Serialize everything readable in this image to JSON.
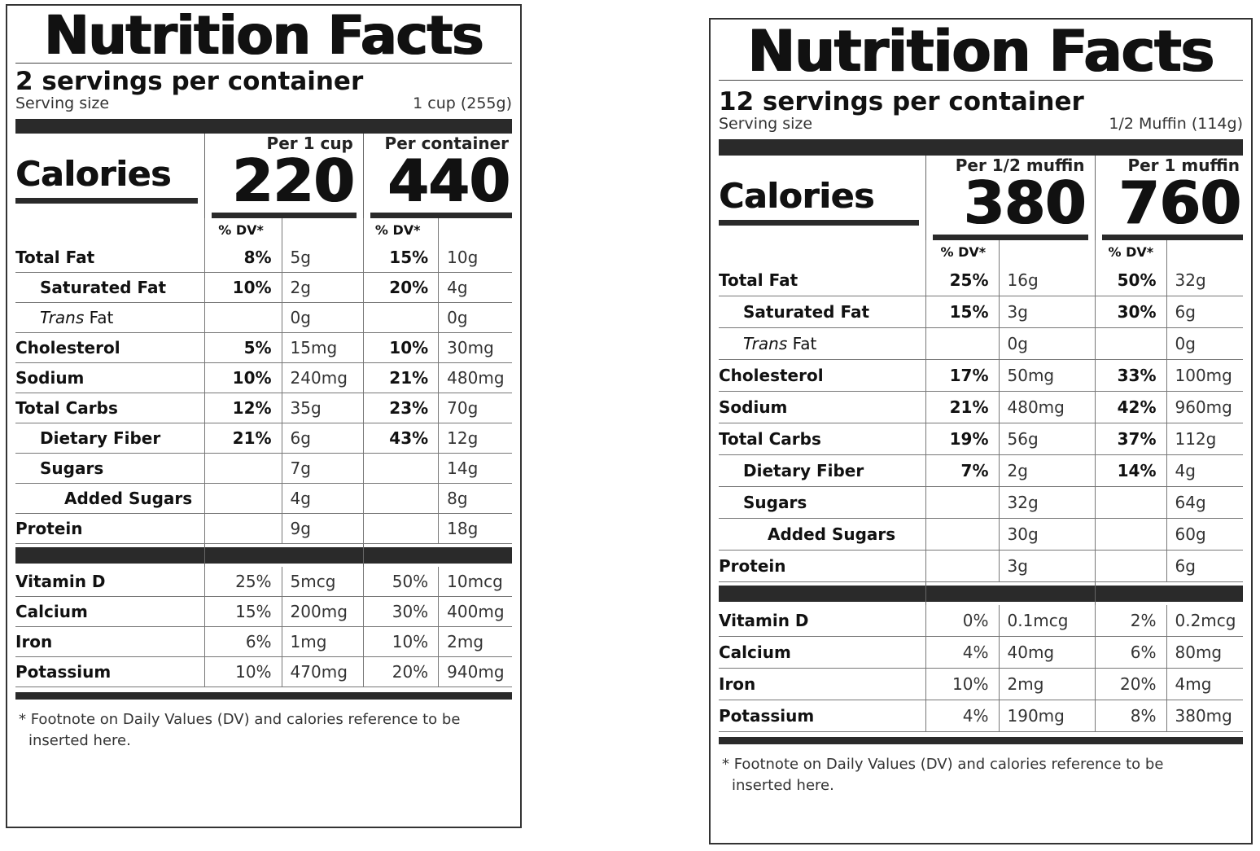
{
  "labels": [
    {
      "title": "Nutrition Facts",
      "servings": "2 servings per container",
      "serving_size_label": "Serving size",
      "serving_size_value": "1 cup (255g)",
      "calories_label": "Calories",
      "columns": [
        {
          "header": "Per 1 cup",
          "calories": "220"
        },
        {
          "header": "Per container",
          "calories": "440"
        }
      ],
      "dv_header": "% DV*",
      "nutrients": [
        {
          "name": "Total Fat",
          "c1_pct": "8%",
          "c1_amt": "5g",
          "c2_pct": "15%",
          "c2_amt": "10g"
        },
        {
          "name": "Saturated Fat",
          "c1_pct": "10%",
          "c1_amt": "2g",
          "c2_pct": "20%",
          "c2_amt": "4g"
        },
        {
          "name_italic": "Trans",
          "name_rest": " Fat",
          "c1_pct": "",
          "c1_amt": "0g",
          "c2_pct": "",
          "c2_amt": "0g"
        },
        {
          "name": "Cholesterol",
          "c1_pct": "5%",
          "c1_amt": "15mg",
          "c2_pct": "10%",
          "c2_amt": "30mg"
        },
        {
          "name": "Sodium",
          "c1_pct": "10%",
          "c1_amt": "240mg",
          "c2_pct": "21%",
          "c2_amt": "480mg"
        },
        {
          "name": "Total Carbs",
          "c1_pct": "12%",
          "c1_amt": "35g",
          "c2_pct": "23%",
          "c2_amt": "70g"
        },
        {
          "name": "Dietary Fiber",
          "c1_pct": "21%",
          "c1_amt": "6g",
          "c2_pct": "43%",
          "c2_amt": "12g"
        },
        {
          "name": "Sugars",
          "c1_pct": "",
          "c1_amt": "7g",
          "c2_pct": "",
          "c2_amt": "14g"
        },
        {
          "name": "Added Sugars",
          "c1_pct": "",
          "c1_amt": "4g",
          "c2_pct": "",
          "c2_amt": "8g"
        },
        {
          "name": "Protein",
          "c1_pct": "",
          "c1_amt": "9g",
          "c2_pct": "",
          "c2_amt": "18g"
        }
      ],
      "vitamins": [
        {
          "name": "Vitamin D",
          "c1_pct": "25%",
          "c1_amt": "5mcg",
          "c2_pct": "50%",
          "c2_amt": "10mcg"
        },
        {
          "name": "Calcium",
          "c1_pct": "15%",
          "c1_amt": "200mg",
          "c2_pct": "30%",
          "c2_amt": "400mg"
        },
        {
          "name": "Iron",
          "c1_pct": "6%",
          "c1_amt": "1mg",
          "c2_pct": "10%",
          "c2_amt": "2mg"
        },
        {
          "name": "Potassium",
          "c1_pct": "10%",
          "c1_amt": "470mg",
          "c2_pct": "20%",
          "c2_amt": "940mg"
        }
      ],
      "footnote_line1": "* Footnote on Daily Values (DV) and calories reference to be",
      "footnote_line2": "inserted here."
    },
    {
      "title": "Nutrition Facts",
      "servings": "12 servings per container",
      "serving_size_label": "Serving size",
      "serving_size_value": "1/2 Muffin (114g)",
      "calories_label": "Calories",
      "columns": [
        {
          "header": "Per 1/2 muffin",
          "calories": "380"
        },
        {
          "header": "Per 1 muffin",
          "calories": "760"
        }
      ],
      "dv_header": "% DV*",
      "nutrients": [
        {
          "name": "Total Fat",
          "c1_pct": "25%",
          "c1_amt": "16g",
          "c2_pct": "50%",
          "c2_amt": "32g"
        },
        {
          "name": "Saturated Fat",
          "c1_pct": "15%",
          "c1_amt": "3g",
          "c2_pct": "30%",
          "c2_amt": "6g"
        },
        {
          "name_italic": "Trans",
          "name_rest": " Fat",
          "c1_pct": "",
          "c1_amt": "0g",
          "c2_pct": "",
          "c2_amt": "0g"
        },
        {
          "name": "Cholesterol",
          "c1_pct": "17%",
          "c1_amt": "50mg",
          "c2_pct": "33%",
          "c2_amt": "100mg"
        },
        {
          "name": "Sodium",
          "c1_pct": "21%",
          "c1_amt": "480mg",
          "c2_pct": "42%",
          "c2_amt": "960mg"
        },
        {
          "name": "Total Carbs",
          "c1_pct": "19%",
          "c1_amt": "56g",
          "c2_pct": "37%",
          "c2_amt": "112g"
        },
        {
          "name": "Dietary Fiber",
          "c1_pct": "7%",
          "c1_amt": "2g",
          "c2_pct": "14%",
          "c2_amt": "4g"
        },
        {
          "name": "Sugars",
          "c1_pct": "",
          "c1_amt": "32g",
          "c2_pct": "",
          "c2_amt": "64g"
        },
        {
          "name": "Added Sugars",
          "c1_pct": "",
          "c1_amt": "30g",
          "c2_pct": "",
          "c2_amt": "60g"
        },
        {
          "name": "Protein",
          "c1_pct": "",
          "c1_amt": "3g",
          "c2_pct": "",
          "c2_amt": "6g"
        }
      ],
      "vitamins": [
        {
          "name": "Vitamin D",
          "c1_pct": "0%",
          "c1_amt": "0.1mcg",
          "c2_pct": "2%",
          "c2_amt": "0.2mcg"
        },
        {
          "name": "Calcium",
          "c1_pct": "4%",
          "c1_amt": "40mg",
          "c2_pct": "6%",
          "c2_amt": "80mg"
        },
        {
          "name": "Iron",
          "c1_pct": "10%",
          "c1_amt": "2mg",
          "c2_pct": "20%",
          "c2_amt": "4mg"
        },
        {
          "name": "Potassium",
          "c1_pct": "4%",
          "c1_amt": "190mg",
          "c2_pct": "8%",
          "c2_amt": "380mg"
        }
      ],
      "footnote_line1": "* Footnote on Daily Values (DV) and calories reference to be",
      "footnote_line2": "inserted here."
    }
  ]
}
